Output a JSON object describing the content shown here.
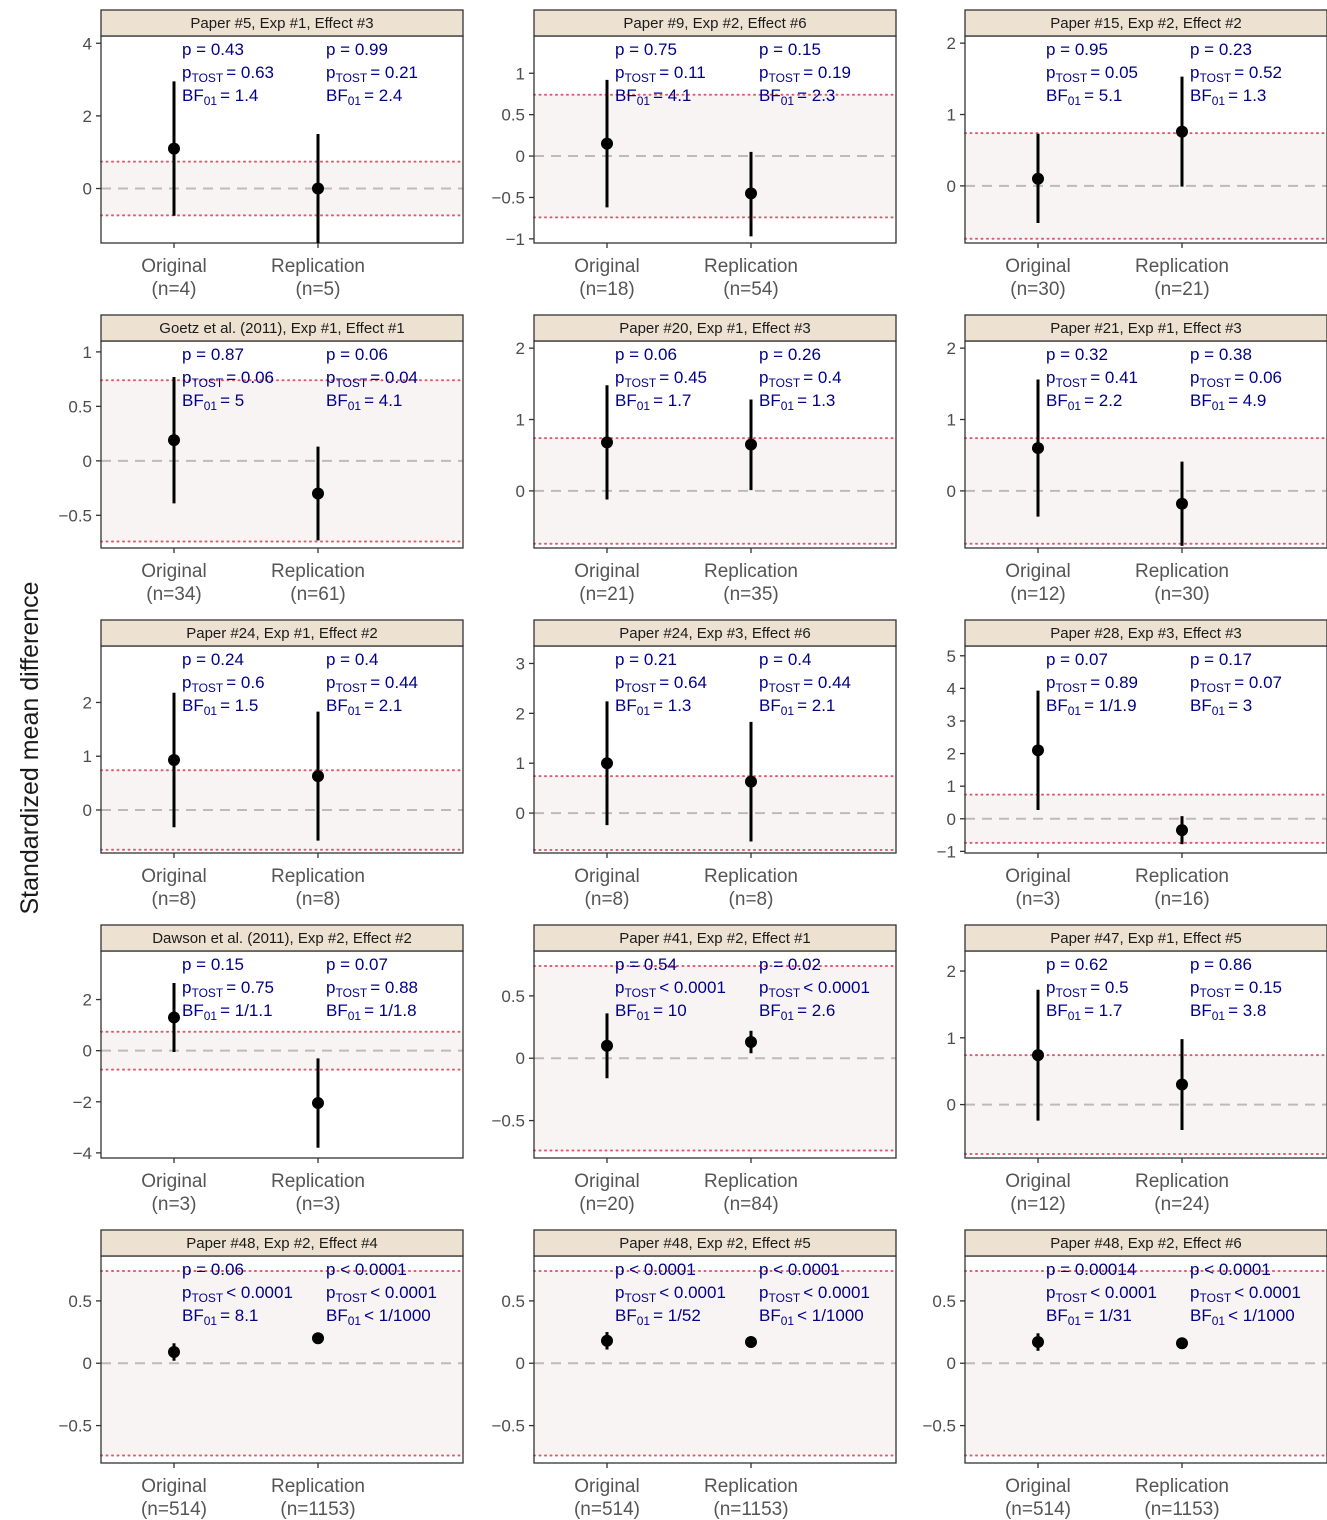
{
  "figure": {
    "ylabel": "Standardized mean difference",
    "colors": {
      "strip_fill": "#ede2d2",
      "strip_border": "#333333",
      "equivalence_band": "#f9f4f4",
      "bound_line": "#e05a6e",
      "zero_line": "#bbbbbb",
      "point": "#000000",
      "annotation": "#000088",
      "tick_text": "#4d4d4d",
      "x_text": "#555555"
    },
    "equivalence_bound": 0.74
  },
  "chart_data": [
    {
      "type": "pointrange",
      "title": "Paper #5, Exp #1, Effect #3",
      "ylim": [
        -1.5,
        4.2
      ],
      "yticks": [
        0,
        2,
        4
      ],
      "categories": [
        "Original",
        "Replication"
      ],
      "n_labels": [
        "(n=4)",
        "(n=5)"
      ],
      "estimates": [
        1.1,
        0.0
      ],
      "ci_low": [
        -0.75,
        -1.5
      ],
      "ci_high": [
        2.95,
        1.5
      ],
      "annotations": [
        {
          "p": "p = 0.43",
          "tost": "= 0.63",
          "bf": "= 1.4"
        },
        {
          "p": "p = 0.99",
          "tost": "= 0.21",
          "bf": "= 2.4"
        }
      ]
    },
    {
      "type": "pointrange",
      "title": "Paper #9, Exp #2, Effect #6",
      "ylim": [
        -1.05,
        1.45
      ],
      "yticks": [
        -1.0,
        -0.5,
        0.0,
        0.5,
        1.0
      ],
      "categories": [
        "Original",
        "Replication"
      ],
      "n_labels": [
        "(n=18)",
        "(n=54)"
      ],
      "estimates": [
        0.15,
        -0.45
      ],
      "ci_low": [
        -0.62,
        -0.97
      ],
      "ci_high": [
        0.92,
        0.05
      ],
      "annotations": [
        {
          "p": "p = 0.75",
          "tost": "= 0.11",
          "bf": "= 4.1"
        },
        {
          "p": "p = 0.15",
          "tost": "= 0.19",
          "bf": "= 2.3"
        }
      ]
    },
    {
      "type": "pointrange",
      "title": "Paper #15, Exp #2, Effect #2",
      "ylim": [
        -0.8,
        2.1
      ],
      "yticks": [
        0,
        1,
        2
      ],
      "categories": [
        "Original",
        "Replication"
      ],
      "n_labels": [
        "(n=30)",
        "(n=21)"
      ],
      "estimates": [
        0.1,
        0.76
      ],
      "ci_low": [
        -0.52,
        -0.01
      ],
      "ci_high": [
        0.73,
        1.53
      ],
      "annotations": [
        {
          "p": "p = 0.95",
          "tost": "= 0.05",
          "bf": "= 5.1"
        },
        {
          "p": "p = 0.23",
          "tost": "= 0.52",
          "bf": "= 1.3"
        }
      ]
    },
    {
      "type": "pointrange",
      "title": "Goetz et al. (2011), Exp #1, Effect #1",
      "ylim": [
        -0.8,
        1.1
      ],
      "yticks": [
        -0.5,
        0.0,
        0.5,
        1.0
      ],
      "categories": [
        "Original",
        "Replication"
      ],
      "n_labels": [
        "(n=34)",
        "(n=61)"
      ],
      "estimates": [
        0.19,
        -0.3
      ],
      "ci_low": [
        -0.39,
        -0.73
      ],
      "ci_high": [
        0.77,
        0.13
      ],
      "annotations": [
        {
          "p": "p = 0.87",
          "tost": "= 0.06",
          "bf": "= 5"
        },
        {
          "p": "p = 0.06",
          "tost": "= 0.04",
          "bf": "= 4.1"
        }
      ]
    },
    {
      "type": "pointrange",
      "title": "Paper #20, Exp #1, Effect #3",
      "ylim": [
        -0.8,
        2.1
      ],
      "yticks": [
        0,
        1,
        2
      ],
      "categories": [
        "Original",
        "Replication"
      ],
      "n_labels": [
        "(n=21)",
        "(n=35)"
      ],
      "estimates": [
        0.68,
        0.65
      ],
      "ci_low": [
        -0.12,
        0.01
      ],
      "ci_high": [
        1.48,
        1.28
      ],
      "annotations": [
        {
          "p": "p = 0.06",
          "tost": "= 0.45",
          "bf": "= 1.7"
        },
        {
          "p": "p = 0.26",
          "tost": "= 0.4",
          "bf": "= 1.3"
        }
      ]
    },
    {
      "type": "pointrange",
      "title": "Paper #21, Exp #1, Effect #3",
      "ylim": [
        -0.8,
        2.1
      ],
      "yticks": [
        0,
        1,
        2
      ],
      "categories": [
        "Original",
        "Replication"
      ],
      "n_labels": [
        "(n=12)",
        "(n=30)"
      ],
      "estimates": [
        0.6,
        -0.18
      ],
      "ci_low": [
        -0.36,
        -0.77
      ],
      "ci_high": [
        1.56,
        0.41
      ],
      "annotations": [
        {
          "p": "p = 0.32",
          "tost": "= 0.41",
          "bf": "= 2.2"
        },
        {
          "p": "p = 0.38",
          "tost": "= 0.06",
          "bf": "= 4.9"
        }
      ]
    },
    {
      "type": "pointrange",
      "title": "Paper #24, Exp #1, Effect #2",
      "ylim": [
        -0.8,
        3.05
      ],
      "yticks": [
        0,
        1,
        2
      ],
      "categories": [
        "Original",
        "Replication"
      ],
      "n_labels": [
        "(n=8)",
        "(n=8)"
      ],
      "estimates": [
        0.93,
        0.63
      ],
      "ci_low": [
        -0.32,
        -0.57
      ],
      "ci_high": [
        2.18,
        1.83
      ],
      "annotations": [
        {
          "p": "p = 0.24",
          "tost": "= 0.6",
          "bf": "= 1.5"
        },
        {
          "p": "p = 0.4",
          "tost": "= 0.44",
          "bf": "= 2.1"
        }
      ]
    },
    {
      "type": "pointrange",
      "title": "Paper #24, Exp #3, Effect #6",
      "ylim": [
        -0.8,
        3.35
      ],
      "yticks": [
        0,
        1,
        2,
        3
      ],
      "categories": [
        "Original",
        "Replication"
      ],
      "n_labels": [
        "(n=8)",
        "(n=8)"
      ],
      "estimates": [
        1.0,
        0.63
      ],
      "ci_low": [
        -0.24,
        -0.57
      ],
      "ci_high": [
        2.24,
        1.83
      ],
      "annotations": [
        {
          "p": "p = 0.21",
          "tost": "= 0.64",
          "bf": "= 1.3"
        },
        {
          "p": "p = 0.4",
          "tost": "= 0.44",
          "bf": "= 2.1"
        }
      ]
    },
    {
      "type": "pointrange",
      "title": "Paper #28, Exp #3, Effect #3",
      "ylim": [
        -1.05,
        5.3
      ],
      "yticks": [
        -1,
        0,
        1,
        2,
        3,
        4,
        5
      ],
      "categories": [
        "Original",
        "Replication"
      ],
      "n_labels": [
        "(n=3)",
        "(n=16)"
      ],
      "estimates": [
        2.1,
        -0.35
      ],
      "ci_low": [
        0.27,
        -0.78
      ],
      "ci_high": [
        3.93,
        0.08
      ],
      "annotations": [
        {
          "p": "p = 0.07",
          "tost": "= 0.89",
          "bf": "= 1/1.9"
        },
        {
          "p": "p = 0.17",
          "tost": "= 0.07",
          "bf": "= 3"
        }
      ]
    },
    {
      "type": "pointrange",
      "title": "Dawson et al. (2011), Exp #2, Effect #2",
      "ylim": [
        -4.2,
        3.9
      ],
      "yticks": [
        -4,
        -2,
        0,
        2
      ],
      "categories": [
        "Original",
        "Replication"
      ],
      "n_labels": [
        "(n=3)",
        "(n=3)"
      ],
      "estimates": [
        1.3,
        -2.05
      ],
      "ci_low": [
        -0.05,
        -3.8
      ],
      "ci_high": [
        2.65,
        -0.3
      ],
      "annotations": [
        {
          "p": "p = 0.15",
          "tost": "= 0.75",
          "bf": "= 1/1.1"
        },
        {
          "p": "p = 0.07",
          "tost": "= 0.88",
          "bf": "= 1/1.8"
        }
      ]
    },
    {
      "type": "pointrange",
      "title": "Paper #41, Exp #2, Effect #1",
      "ylim": [
        -0.8,
        0.86
      ],
      "yticks": [
        -0.5,
        0.0,
        0.5
      ],
      "categories": [
        "Original",
        "Replication"
      ],
      "n_labels": [
        "(n=20)",
        "(n=84)"
      ],
      "estimates": [
        0.1,
        0.13
      ],
      "ci_low": [
        -0.16,
        0.04
      ],
      "ci_high": [
        0.36,
        0.22
      ],
      "annotations": [
        {
          "p": "p = 0.54",
          "tost": "< 0.0001",
          "bf": "= 10"
        },
        {
          "p": "p = 0.02",
          "tost": "< 0.0001",
          "bf": "= 2.6"
        }
      ]
    },
    {
      "type": "pointrange",
      "title": "Paper #47, Exp #1, Effect #5",
      "ylim": [
        -0.8,
        2.3
      ],
      "yticks": [
        0,
        1,
        2
      ],
      "categories": [
        "Original",
        "Replication"
      ],
      "n_labels": [
        "(n=12)",
        "(n=24)"
      ],
      "estimates": [
        0.74,
        0.3
      ],
      "ci_low": [
        -0.24,
        -0.38
      ],
      "ci_high": [
        1.72,
        0.98
      ],
      "annotations": [
        {
          "p": "p = 0.62",
          "tost": "= 0.5",
          "bf": "= 1.7"
        },
        {
          "p": "p = 0.86",
          "tost": "= 0.15",
          "bf": "= 3.8"
        }
      ]
    },
    {
      "type": "pointrange",
      "title": "Paper #48, Exp #2, Effect #4",
      "ylim": [
        -0.8,
        0.86
      ],
      "yticks": [
        -0.5,
        0.0,
        0.5
      ],
      "categories": [
        "Original",
        "Replication"
      ],
      "n_labels": [
        "(n=514)",
        "(n=1153)"
      ],
      "estimates": [
        0.09,
        0.2
      ],
      "ci_low": [
        0.02,
        0.16
      ],
      "ci_high": [
        0.16,
        0.24
      ],
      "annotations": [
        {
          "p": "p = 0.06",
          "tost": "< 0.0001",
          "bf": "= 8.1"
        },
        {
          "p": "p < 0.0001",
          "tost": "< 0.0001",
          "bf": "< 1/1000"
        }
      ]
    },
    {
      "type": "pointrange",
      "title": "Paper #48, Exp #2, Effect #5",
      "ylim": [
        -0.8,
        0.86
      ],
      "yticks": [
        -0.5,
        0.0,
        0.5
      ],
      "categories": [
        "Original",
        "Replication"
      ],
      "n_labels": [
        "(n=514)",
        "(n=1153)"
      ],
      "estimates": [
        0.18,
        0.17
      ],
      "ci_low": [
        0.11,
        0.13
      ],
      "ci_high": [
        0.25,
        0.21
      ],
      "annotations": [
        {
          "p": "p < 0.0001",
          "tost": "< 0.0001",
          "bf": "= 1/52"
        },
        {
          "p": "p < 0.0001",
          "tost": "< 0.0001",
          "bf": "< 1/1000"
        }
      ]
    },
    {
      "type": "pointrange",
      "title": "Paper #48, Exp #2, Effect #6",
      "ylim": [
        -0.8,
        0.86
      ],
      "yticks": [
        -0.5,
        0.0,
        0.5
      ],
      "categories": [
        "Original",
        "Replication"
      ],
      "n_labels": [
        "(n=514)",
        "(n=1153)"
      ],
      "estimates": [
        0.17,
        0.16
      ],
      "ci_low": [
        0.1,
        0.12
      ],
      "ci_high": [
        0.24,
        0.2
      ],
      "annotations": [
        {
          "p": "p = 0.00014",
          "tost": "< 0.0001",
          "bf": "= 1/31"
        },
        {
          "p": "p < 0.0001",
          "tost": "< 0.0001",
          "bf": "< 1/1000"
        }
      ]
    }
  ]
}
